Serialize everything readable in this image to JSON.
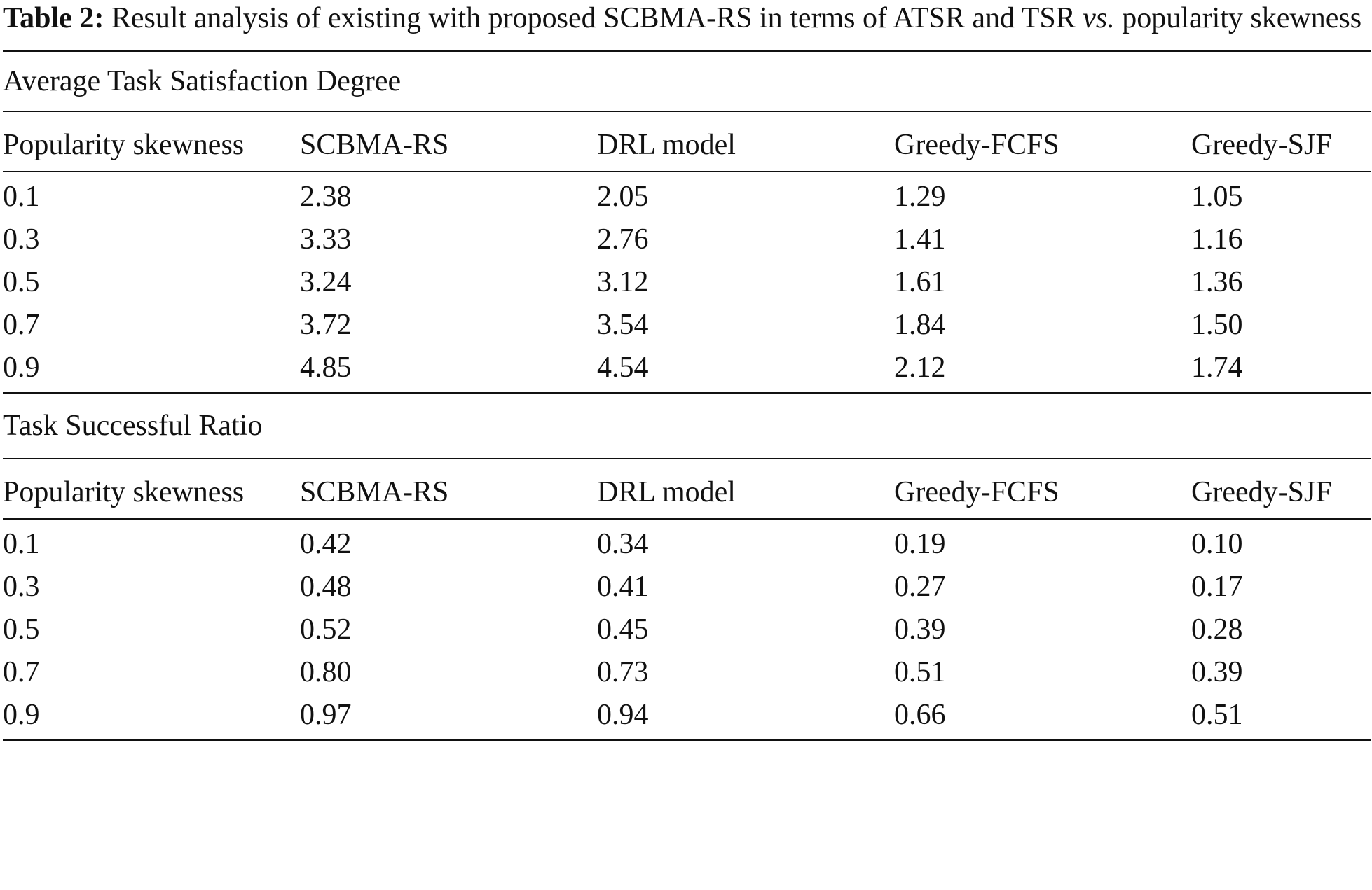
{
  "caption": {
    "label": "Table 2:",
    "text_before_vs": " Result analysis of existing with proposed SCBMA-RS in terms of ATSR and TSR ",
    "vs": "vs.",
    "text_after_vs": " popularity skewness"
  },
  "sections": [
    {
      "title": "Average Task Satisfaction Degree",
      "headers": [
        "Popularity skewness",
        "SCBMA-RS",
        "DRL model",
        "Greedy-FCFS",
        "Greedy-SJF"
      ],
      "rows": [
        [
          "0.1",
          "2.38",
          "2.05",
          "1.29",
          "1.05"
        ],
        [
          "0.3",
          "3.33",
          "2.76",
          "1.41",
          "1.16"
        ],
        [
          "0.5",
          "3.24",
          "3.12",
          "1.61",
          "1.36"
        ],
        [
          "0.7",
          "3.72",
          "3.54",
          "1.84",
          "1.50"
        ],
        [
          "0.9",
          "4.85",
          "4.54",
          "2.12",
          "1.74"
        ]
      ]
    },
    {
      "title": "Task Successful Ratio",
      "headers": [
        "Popularity skewness",
        "SCBMA-RS",
        "DRL model",
        "Greedy-FCFS",
        "Greedy-SJF"
      ],
      "rows": [
        [
          "0.1",
          "0.42",
          "0.34",
          "0.19",
          "0.10"
        ],
        [
          "0.3",
          "0.48",
          "0.41",
          "0.27",
          "0.17"
        ],
        [
          "0.5",
          "0.52",
          "0.45",
          "0.39",
          "0.28"
        ],
        [
          "0.7",
          "0.80",
          "0.73",
          "0.51",
          "0.39"
        ],
        [
          "0.9",
          "0.97",
          "0.94",
          "0.66",
          "0.51"
        ]
      ]
    }
  ]
}
